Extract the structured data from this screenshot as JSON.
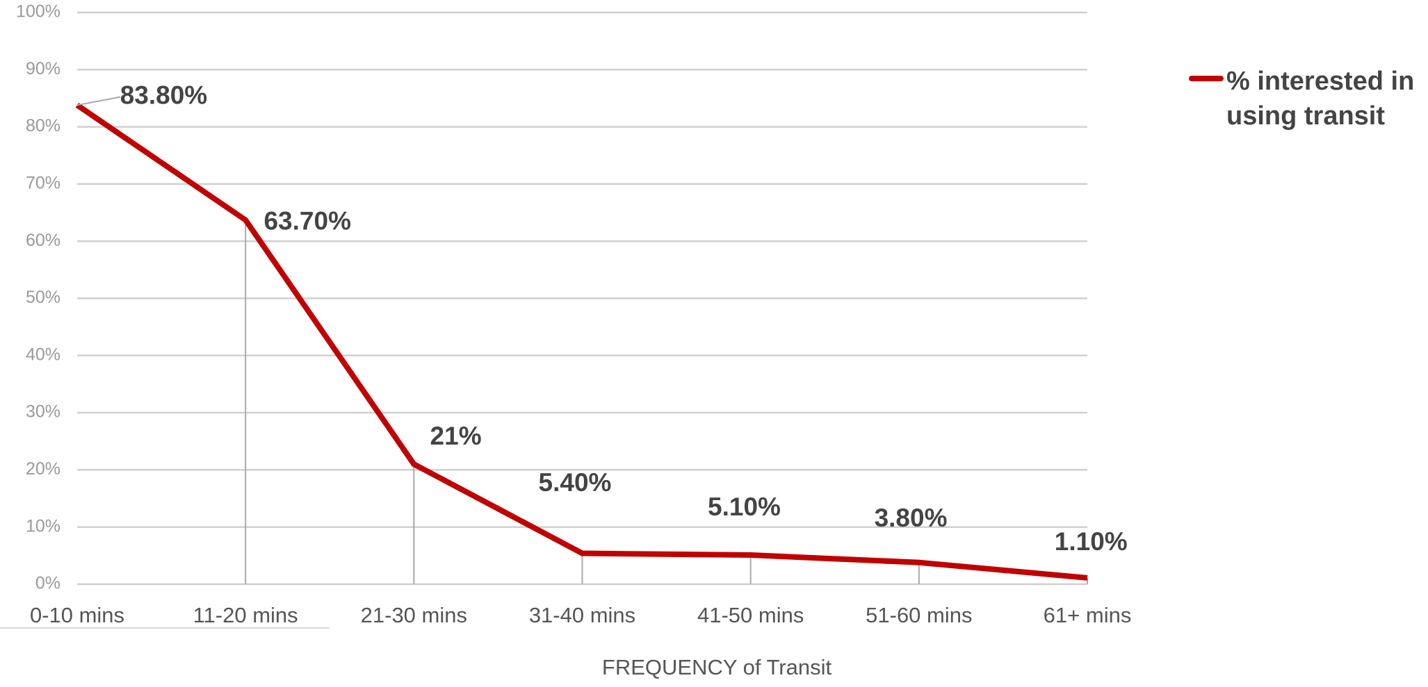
{
  "chart_data": {
    "type": "line",
    "x_label": "FREQUENCY of Transit",
    "categories": [
      "0-10 mins",
      "11-20 mins",
      "21-30 mins",
      "31-40 mins",
      "41-50 mins",
      "51-60 mins",
      "61+ mins"
    ],
    "series": [
      {
        "name": "% interested in using transit",
        "color": "#c00000",
        "values": [
          83.8,
          63.7,
          21,
          5.4,
          5.1,
          3.8,
          1.1
        ],
        "value_labels": [
          "83.80%",
          "63.70%",
          "21%",
          "5.40%",
          "5.10%",
          "3.80%",
          "1.10%"
        ]
      }
    ],
    "ylim": [
      0,
      100
    ],
    "yticks": [
      {
        "value": 0,
        "label": "0%"
      },
      {
        "value": 10,
        "label": "10%"
      },
      {
        "value": 20,
        "label": "20%"
      },
      {
        "value": 30,
        "label": "30%"
      },
      {
        "value": 40,
        "label": "40%"
      },
      {
        "value": 50,
        "label": "50%"
      },
      {
        "value": 60,
        "label": "60%"
      },
      {
        "value": 70,
        "label": "70%"
      },
      {
        "value": 80,
        "label": "80%"
      },
      {
        "value": 90,
        "label": "90%"
      },
      {
        "value": 100,
        "label": "100%"
      }
    ],
    "grid": true,
    "legend": "right"
  }
}
